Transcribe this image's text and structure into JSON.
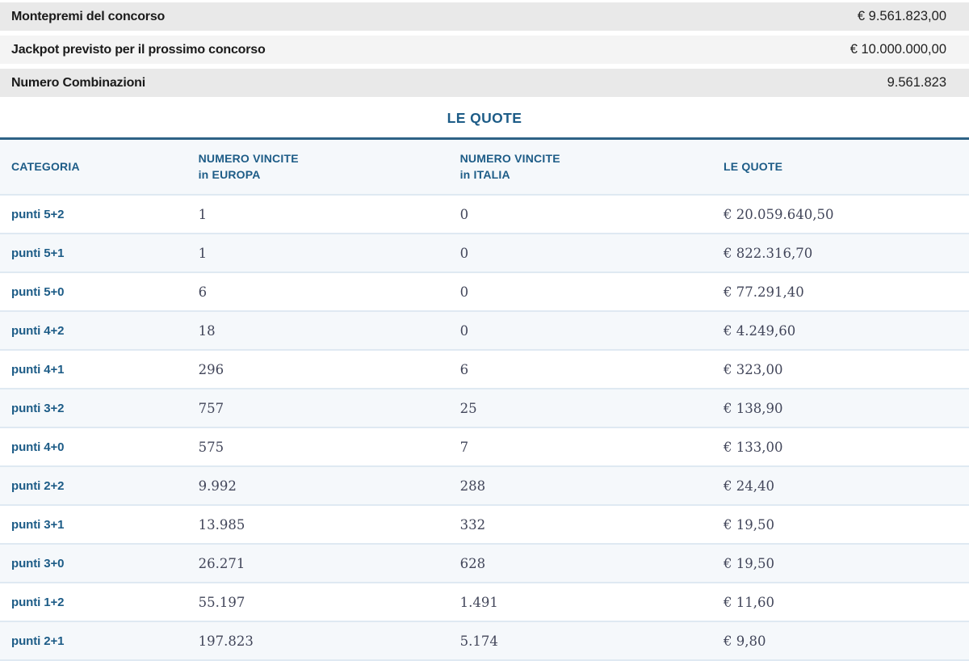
{
  "summary": {
    "rows": [
      {
        "label": "Montepremi del concorso",
        "value": "€ 9.561.823,00"
      },
      {
        "label": "Jackpot previsto per il prossimo concorso",
        "value": "€ 10.000.000,00"
      },
      {
        "label": "Numero Combinazioni",
        "value": "9.561.823"
      }
    ]
  },
  "quote_section": {
    "title": "LE QUOTE",
    "table": {
      "headers": {
        "categoria": "CATEGORIA",
        "vincite_europa_line1": "NUMERO VINCITE",
        "vincite_europa_line2": "in EUROPA",
        "vincite_italia_line1": "NUMERO VINCITE",
        "vincite_italia_line2": "in ITALIA",
        "quote": "LE QUOTE"
      },
      "rows": [
        {
          "categoria": "punti 5+2",
          "vincite_europa": "1",
          "vincite_italia": "0",
          "quota": "€ 20.059.640,50"
        },
        {
          "categoria": "punti 5+1",
          "vincite_europa": "1",
          "vincite_italia": "0",
          "quota": "€ 822.316,70"
        },
        {
          "categoria": "punti 5+0",
          "vincite_europa": "6",
          "vincite_italia": "0",
          "quota": "€ 77.291,40"
        },
        {
          "categoria": "punti 4+2",
          "vincite_europa": "18",
          "vincite_italia": "0",
          "quota": "€ 4.249,60"
        },
        {
          "categoria": "punti 4+1",
          "vincite_europa": "296",
          "vincite_italia": "6",
          "quota": "€ 323,00"
        },
        {
          "categoria": "punti 3+2",
          "vincite_europa": "757",
          "vincite_italia": "25",
          "quota": "€ 138,90"
        },
        {
          "categoria": "punti 4+0",
          "vincite_europa": "575",
          "vincite_italia": "7",
          "quota": "€ 133,00"
        },
        {
          "categoria": "punti 2+2",
          "vincite_europa": "9.992",
          "vincite_italia": "288",
          "quota": "€ 24,40"
        },
        {
          "categoria": "punti 3+1",
          "vincite_europa": "13.985",
          "vincite_italia": "332",
          "quota": "€ 19,50"
        },
        {
          "categoria": "punti 3+0",
          "vincite_europa": "26.271",
          "vincite_italia": "628",
          "quota": "€ 19,50"
        },
        {
          "categoria": "punti 1+2",
          "vincite_europa": "55.197",
          "vincite_italia": "1.491",
          "quota": "€ 11,60"
        },
        {
          "categoria": "punti 2+1",
          "vincite_europa": "197.823",
          "vincite_italia": "5.174",
          "quota": "€ 9,80"
        }
      ]
    }
  },
  "colors": {
    "accent_blue": "#1d5c87",
    "rule_blue": "#2e6286",
    "row_alt_bg": "#f5f8fb",
    "separator": "#dfe9f2",
    "summary_bg_dark": "#e9e9e9",
    "summary_bg_light": "#f4f4f4",
    "number_text": "#42465a",
    "label_text": "#1a1a1a"
  }
}
